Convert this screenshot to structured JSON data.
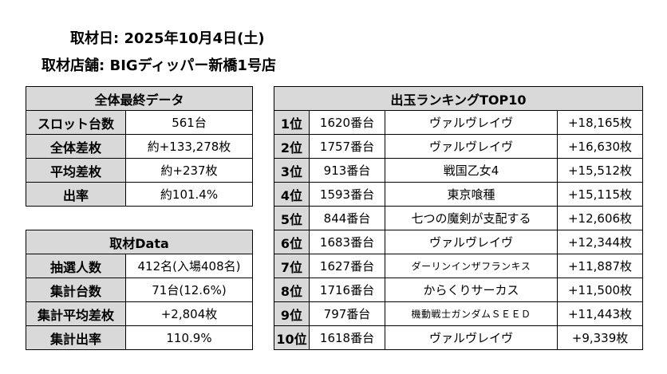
{
  "header": {
    "date_label": "取材日:",
    "date_value": "2025年10月4日(土)",
    "store_label": "取材店舗:",
    "store_value": "BIGディッパー新橋1号店"
  },
  "summary": {
    "title": "全体最終データ",
    "rows": [
      {
        "label": "スロット台数",
        "value": "561台"
      },
      {
        "label": "全体差枚",
        "value": "約+133,278枚"
      },
      {
        "label": "平均差枚",
        "value": "約+237枚"
      },
      {
        "label": "出率",
        "value": "約101.4%"
      }
    ]
  },
  "survey": {
    "title": "取材Data",
    "rows": [
      {
        "label": "抽選人数",
        "value": "412名(入場408名)"
      },
      {
        "label": "集計台数",
        "value": "71台(12.6%)"
      },
      {
        "label": "集計平均差枚",
        "value": "+2,804枚"
      },
      {
        "label": "集計出率",
        "value": "110.9%"
      }
    ]
  },
  "ranking": {
    "title": "出玉ランキングTOP10",
    "rows": [
      {
        "rank": "1位",
        "machine_no": "1620番台",
        "model": "ヴァルヴレイヴ",
        "diff": "+18,165枚"
      },
      {
        "rank": "2位",
        "machine_no": "1757番台",
        "model": "ヴァルヴレイヴ",
        "diff": "+16,630枚"
      },
      {
        "rank": "3位",
        "machine_no": "913番台",
        "model": "戦国乙女4",
        "diff": "+15,512枚"
      },
      {
        "rank": "4位",
        "machine_no": "1593番台",
        "model": "東京喰種",
        "diff": "+15,115枚"
      },
      {
        "rank": "5位",
        "machine_no": "844番台",
        "model": "七つの魔剣が支配する",
        "diff": "+12,606枚"
      },
      {
        "rank": "6位",
        "machine_no": "1683番台",
        "model": "ヴァルヴレイヴ",
        "diff": "+12,344枚"
      },
      {
        "rank": "7位",
        "machine_no": "1627番台",
        "model": "ダーリンインザフランキス",
        "diff": "+11,887枚"
      },
      {
        "rank": "8位",
        "machine_no": "1716番台",
        "model": "からくりサーカス",
        "diff": "+11,500枚"
      },
      {
        "rank": "9位",
        "machine_no": "797番台",
        "model": "機動戦士ガンダムＳＥＥＤ",
        "diff": "+11,443枚"
      },
      {
        "rank": "10位",
        "machine_no": "1618番台",
        "model": "ヴァルヴレイヴ",
        "diff": "+9,339枚"
      }
    ]
  }
}
